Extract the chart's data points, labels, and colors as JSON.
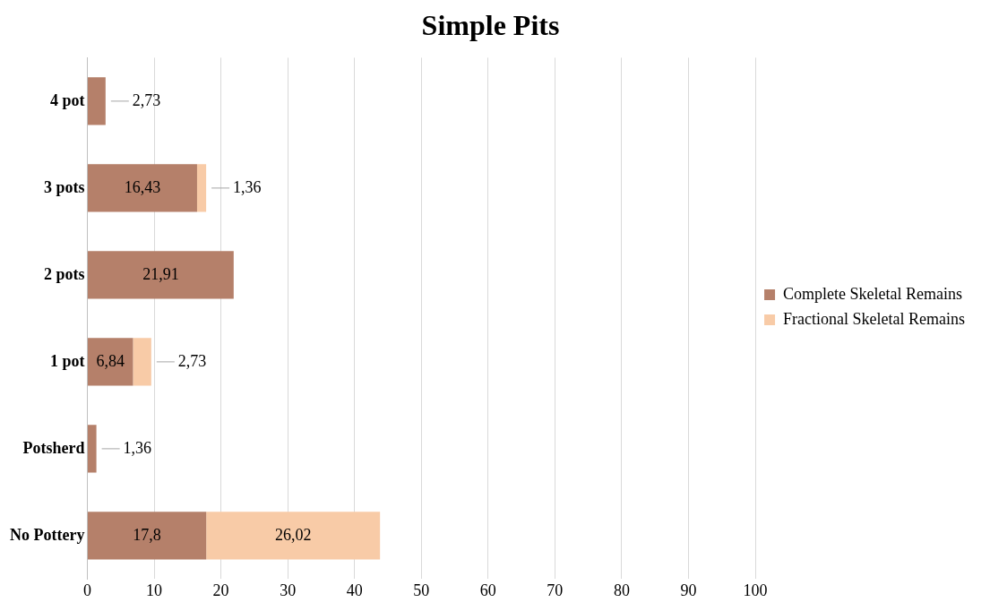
{
  "chart_data": {
    "type": "bar",
    "orientation": "horizontal",
    "stacked": true,
    "title": "Simple Pits",
    "categories": [
      "4 pot",
      "3 pots",
      "2 pots",
      "1 pot",
      "Potsherd",
      "No Pottery"
    ],
    "series": [
      {
        "name": "Complete Skeletal Remains",
        "color": "#b5806a",
        "values": [
          2.73,
          16.43,
          21.91,
          6.84,
          1.36,
          17.8
        ],
        "value_labels": [
          "2,73",
          "16,43",
          "21,91",
          "6,84",
          "1,36",
          "17,8"
        ]
      },
      {
        "name": "Fractional Skeletal Remains",
        "color": "#f8cba7",
        "values": [
          null,
          1.36,
          null,
          2.73,
          null,
          26.02
        ],
        "value_labels": [
          null,
          "1,36",
          null,
          "2,73",
          null,
          "26,02"
        ]
      }
    ],
    "xlim": [
      0,
      100
    ],
    "xticks": [
      0,
      10,
      20,
      30,
      40,
      50,
      60,
      70,
      80,
      90,
      100
    ],
    "grid": "x",
    "legend": "right"
  }
}
